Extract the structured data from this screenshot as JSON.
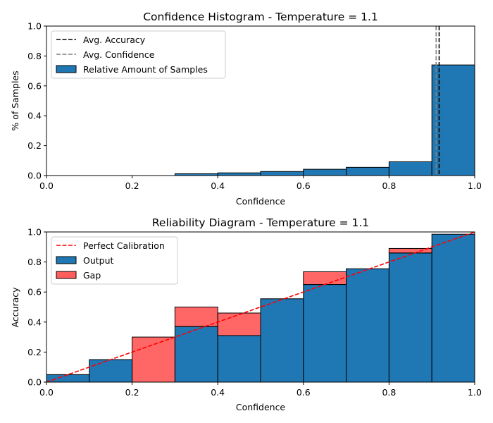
{
  "chart_data": [
    {
      "type": "bar",
      "title": "Confidence Histogram - Temperature = 1.1",
      "xlabel": "Confidence",
      "ylabel": "% of Samples",
      "xlim": [
        0,
        1
      ],
      "ylim": [
        0,
        1
      ],
      "x_ticks": [
        "0.0",
        "0.2",
        "0.4",
        "0.6",
        "0.8",
        "1.0"
      ],
      "y_ticks": [
        "0.0",
        "0.2",
        "0.4",
        "0.6",
        "0.8",
        "1.0"
      ],
      "bin_edges": [
        0.0,
        0.1,
        0.2,
        0.3,
        0.4,
        0.5,
        0.6,
        0.7,
        0.8,
        0.9,
        1.0
      ],
      "series": [
        {
          "name": "Relative Amount of Samples",
          "values": [
            0.0,
            0.0,
            0.0,
            0.012,
            0.018,
            0.027,
            0.042,
            0.055,
            0.092,
            0.74
          ],
          "color": "#1f77b4"
        }
      ],
      "lines": [
        {
          "name": "Avg. Accuracy",
          "x": 0.917,
          "color": "#000000",
          "style": "dashed"
        },
        {
          "name": "Avg. Confidence",
          "x": 0.91,
          "color": "#808080",
          "style": "dashed"
        }
      ],
      "legend": {
        "placement": "top-left",
        "entries": [
          {
            "label": "Avg. Accuracy",
            "kind": "line",
            "color": "#000000"
          },
          {
            "label": "Avg. Confidence",
            "kind": "line",
            "color": "#808080"
          },
          {
            "label": "Relative Amount of Samples",
            "kind": "patch",
            "color": "#1f77b4"
          }
        ]
      }
    },
    {
      "type": "bar",
      "title": "Reliability Diagram - Temperature = 1.1",
      "xlabel": "Confidence",
      "ylabel": "Accuracy",
      "xlim": [
        0,
        1
      ],
      "ylim": [
        0,
        1
      ],
      "x_ticks": [
        "0.0",
        "0.2",
        "0.4",
        "0.6",
        "0.8",
        "1.0"
      ],
      "y_ticks": [
        "0.0",
        "0.2",
        "0.4",
        "0.6",
        "0.8",
        "1.0"
      ],
      "bin_edges": [
        0.0,
        0.1,
        0.2,
        0.3,
        0.4,
        0.5,
        0.6,
        0.7,
        0.8,
        0.9,
        1.0
      ],
      "series": [
        {
          "name": "Output",
          "values": [
            0.05,
            0.15,
            0.0,
            0.37,
            0.31,
            0.555,
            0.65,
            0.755,
            0.86,
            0.985
          ],
          "color": "#1f77b4"
        },
        {
          "name": "Gap",
          "bottom": [
            0.0,
            0.0,
            0.0,
            0.37,
            0.31,
            0.0,
            0.65,
            0.0,
            0.86,
            0.0
          ],
          "top": [
            0.0,
            0.0,
            0.3,
            0.5,
            0.46,
            0.0,
            0.735,
            0.0,
            0.89,
            0.0
          ],
          "color": "#ff0000",
          "alpha": 0.6
        }
      ],
      "reference_line": {
        "name": "Perfect Calibration",
        "from": [
          0,
          0
        ],
        "to": [
          1,
          1
        ],
        "color": "#ff0000",
        "style": "dashed"
      },
      "legend": {
        "placement": "top-left",
        "entries": [
          {
            "label": "Perfect Calibration",
            "kind": "line",
            "color": "#ff0000"
          },
          {
            "label": "Output",
            "kind": "patch",
            "color": "#1f77b4"
          },
          {
            "label": "Gap",
            "kind": "patch",
            "color": "#ff5c5c"
          }
        ]
      }
    }
  ]
}
